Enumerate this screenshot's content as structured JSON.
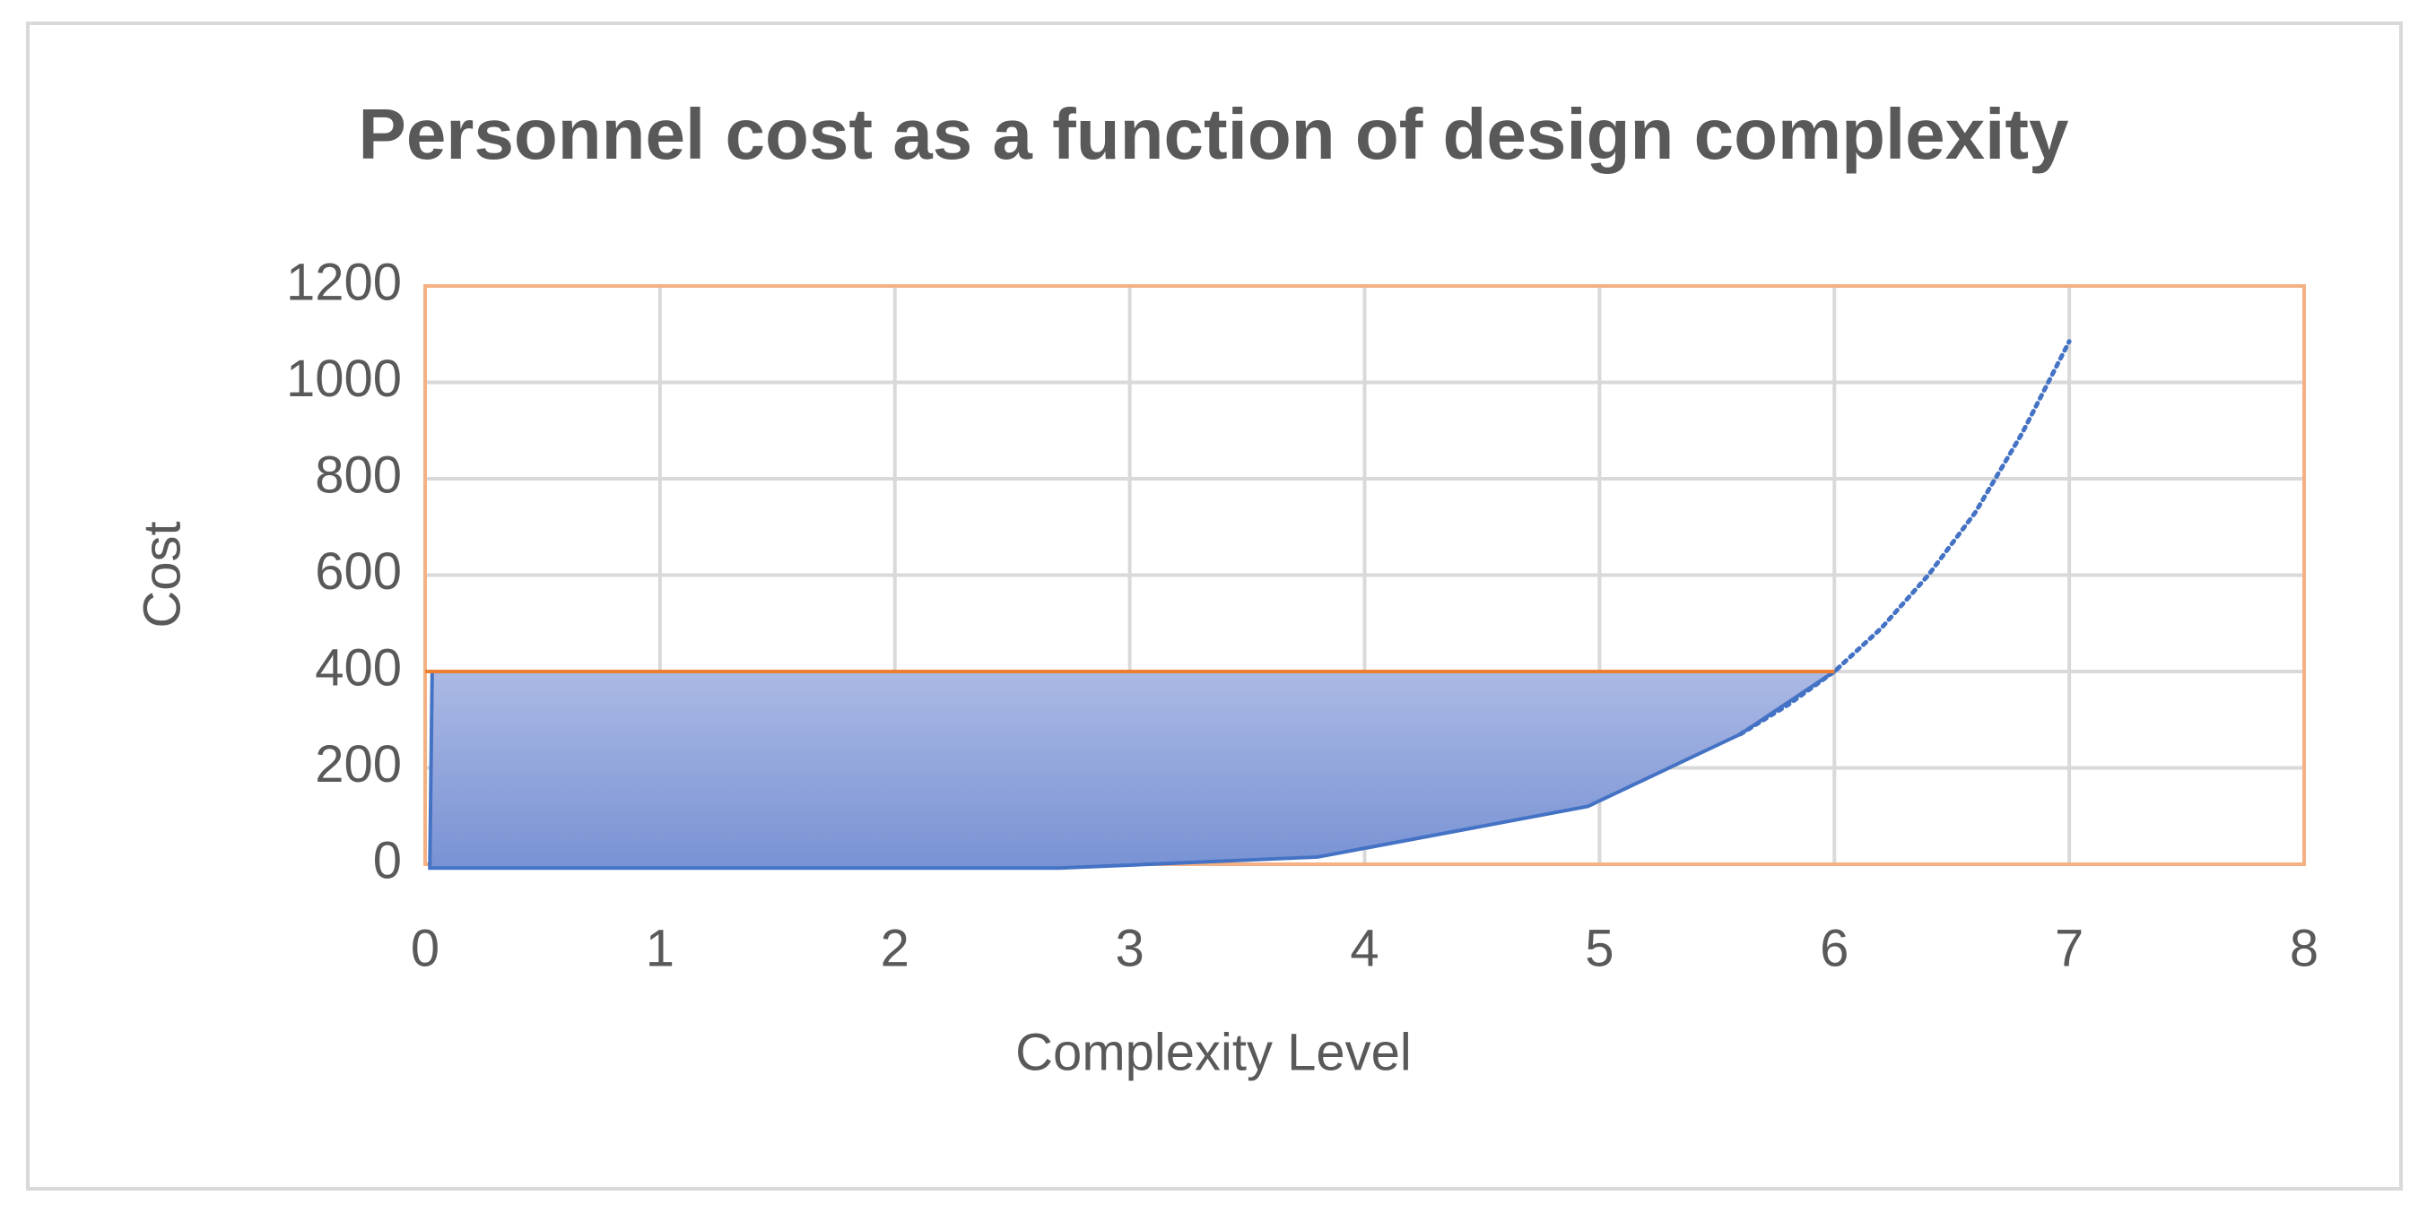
{
  "chart_data": {
    "type": "area",
    "title": "Personnel cost as a function of design complexity",
    "x_label": "Complexity Level",
    "y_label": "Cost",
    "xlim": [
      0,
      8
    ],
    "xticks": [
      0,
      1,
      2,
      3,
      4,
      5,
      6,
      7,
      8
    ],
    "ylim": [
      0,
      1200
    ],
    "yticks": [
      0,
      200,
      400,
      600,
      800,
      1000,
      1200
    ],
    "grid": true,
    "border_color": "#f4b183",
    "series": [
      {
        "style": "fill",
        "color": "#4472c4",
        "gradient": [
          "#abb9e4",
          "#7892d4"
        ],
        "x": [
          0.02,
          0.03,
          6,
          5.6,
          4.95,
          3.8,
          2.7,
          0.02
        ],
        "values": [
          0,
          400,
          400,
          270,
          120,
          15,
          -8,
          -8
        ]
      },
      {
        "style": "dotted",
        "color": "#4472c4",
        "x": [
          5.6,
          5.8,
          6.0,
          6.2,
          6.4,
          6.6,
          6.8,
          7.0
        ],
        "values": [
          270,
          330,
          400,
          490,
          600,
          730,
          895,
          1085
        ]
      },
      {
        "style": "line",
        "color": "#ed7d31",
        "x": [
          0,
          6
        ],
        "values": [
          400,
          400
        ]
      }
    ]
  }
}
